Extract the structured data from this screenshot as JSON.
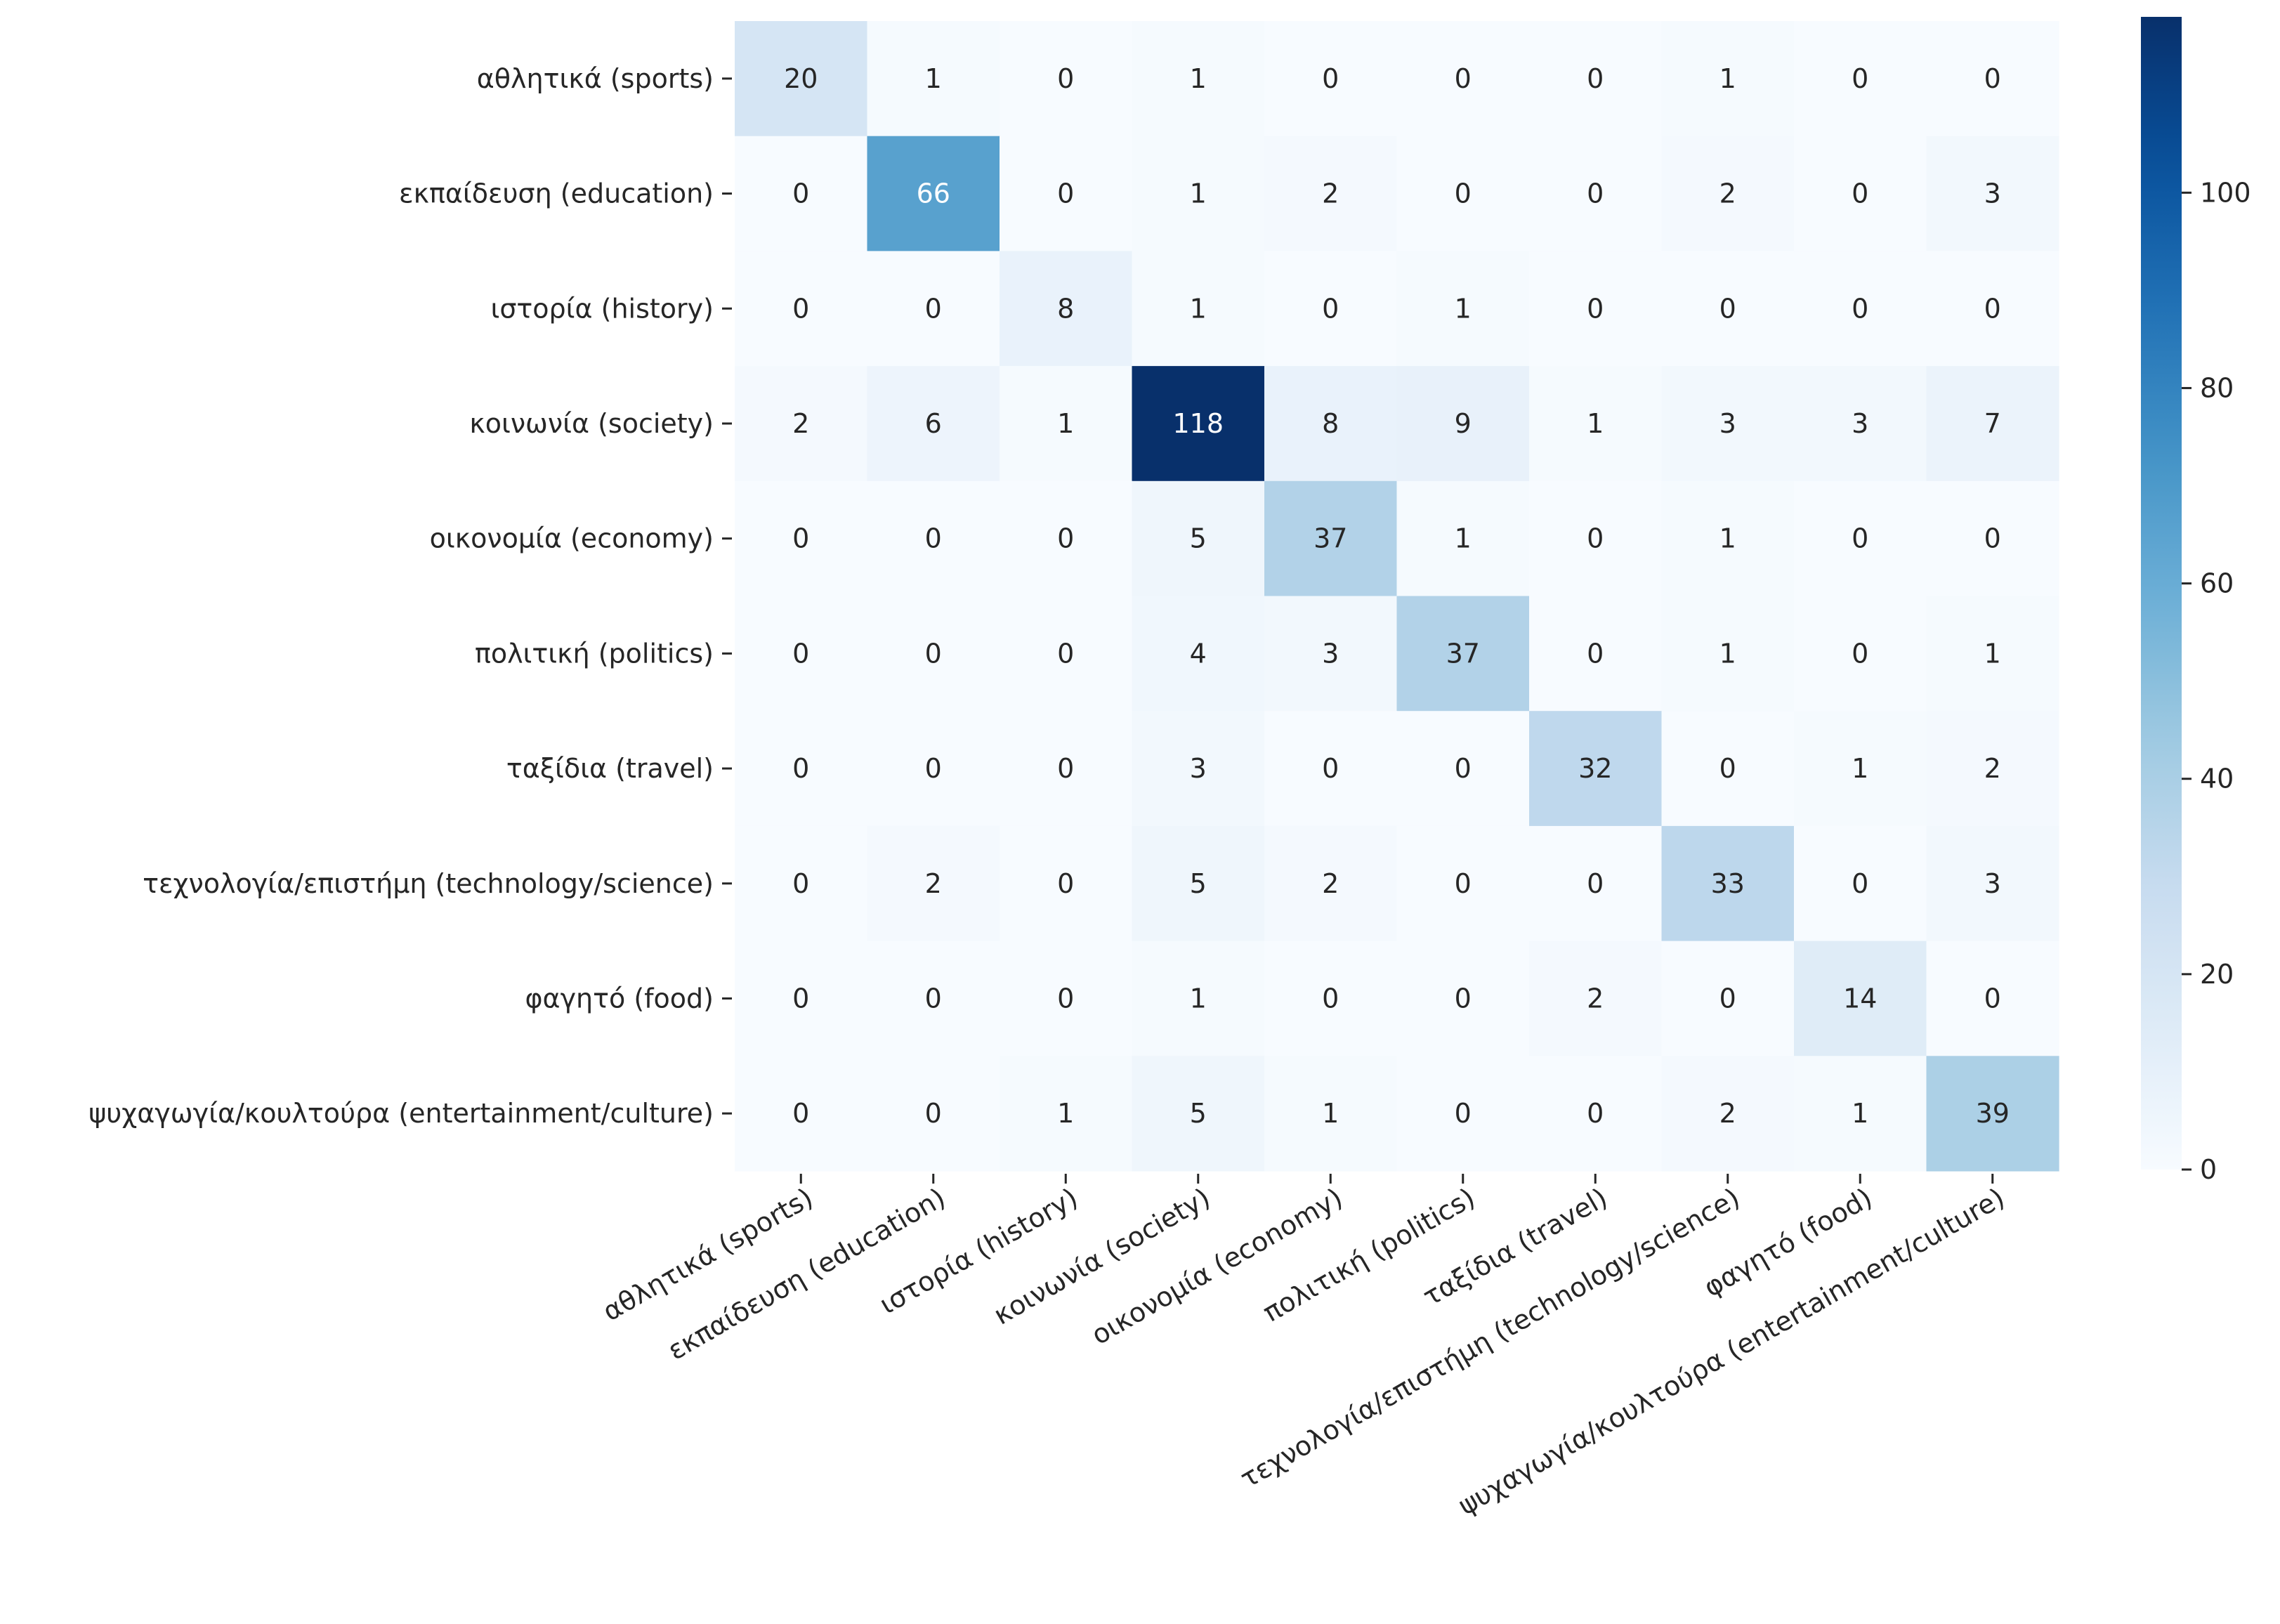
{
  "chart_data": {
    "type": "heatmap",
    "title": "",
    "xlabel": "",
    "ylabel": "",
    "row_labels": [
      "αθλητικά (sports)",
      "εκπαίδευση (education)",
      "ιστορία (history)",
      "κοινωνία (society)",
      "οικονομία (economy)",
      "πολιτική (politics)",
      "ταξίδια (travel)",
      "τεχνολογία/επιστήμη (technology/science)",
      "φαγητό (food)",
      "ψυχαγωγία/κουλτούρα (entertainment/culture)"
    ],
    "col_labels": [
      "αθλητικά (sports)",
      "εκπαίδευση (education)",
      "ιστορία (history)",
      "κοινωνία (society)",
      "οικονομία (economy)",
      "πολιτική (politics)",
      "ταξίδια (travel)",
      "τεχνολογία/επιστήμη (technology/science)",
      "φαγητό (food)",
      "ψυχαγωγία/κουλτούρα (entertainment/culture)"
    ],
    "values": [
      [
        20,
        1,
        0,
        1,
        0,
        0,
        0,
        1,
        0,
        0
      ],
      [
        0,
        66,
        0,
        1,
        2,
        0,
        0,
        2,
        0,
        3
      ],
      [
        0,
        0,
        8,
        1,
        0,
        1,
        0,
        0,
        0,
        0
      ],
      [
        2,
        6,
        1,
        118,
        8,
        9,
        1,
        3,
        3,
        7
      ],
      [
        0,
        0,
        0,
        5,
        37,
        1,
        0,
        1,
        0,
        0
      ],
      [
        0,
        0,
        0,
        4,
        3,
        37,
        0,
        1,
        0,
        1
      ],
      [
        0,
        0,
        0,
        3,
        0,
        0,
        32,
        0,
        1,
        2
      ],
      [
        0,
        2,
        0,
        5,
        2,
        0,
        0,
        33,
        0,
        3
      ],
      [
        0,
        0,
        0,
        1,
        0,
        0,
        2,
        0,
        14,
        0
      ],
      [
        0,
        0,
        1,
        5,
        1,
        0,
        0,
        2,
        1,
        39
      ]
    ],
    "colormap": "Blues",
    "colorbar": {
      "min": 0,
      "max": 118,
      "ticks": [
        0,
        20,
        40,
        60,
        80,
        100
      ]
    },
    "colors": {
      "low": "#f7fbff",
      "high": "#08306b",
      "text_dark": "#262626",
      "text_light": "#ffffff"
    },
    "grid": false,
    "legend": "colorbar-right"
  }
}
